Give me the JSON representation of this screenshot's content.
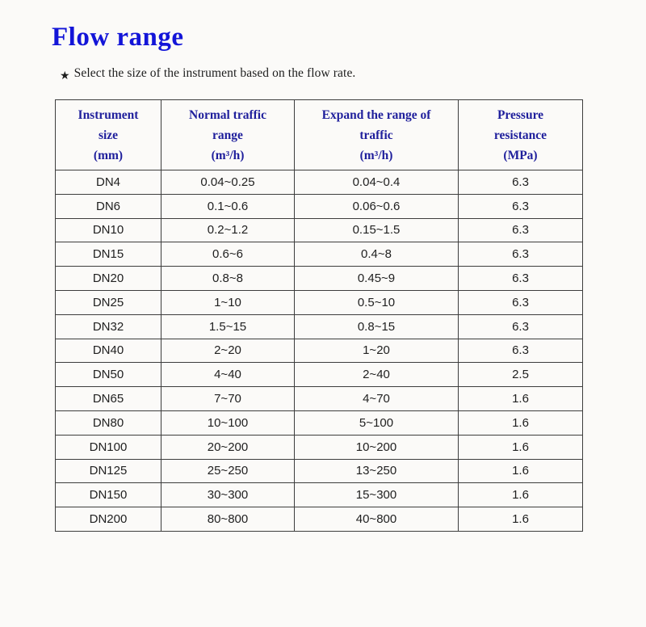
{
  "page": {
    "title": "Flow range",
    "note_bullet": "★",
    "note": "Select the size of the instrument based on the flow rate."
  },
  "colors": {
    "title": "#1315d8",
    "header_text": "#1f1f9c",
    "cell_text": "#212121",
    "border": "#3d3d3d",
    "background": "#fbfaf8"
  },
  "table": {
    "headers": [
      {
        "lines": [
          "Instrument",
          "size",
          "(mm)"
        ]
      },
      {
        "lines": [
          "Normal traffic",
          "range",
          "(m³/h)"
        ]
      },
      {
        "lines": [
          "Expand the range of",
          "traffic",
          "(m³/h)"
        ]
      },
      {
        "lines": [
          "Pressure",
          "resistance",
          "(MPa)"
        ]
      }
    ],
    "rows": [
      {
        "cells": [
          "DN4",
          "0.04~0.25",
          "0.04~0.4",
          "6.3"
        ]
      },
      {
        "cells": [
          "DN6",
          "0.1~0.6",
          "0.06~0.6",
          "6.3"
        ]
      },
      {
        "cells": [
          "DN10",
          "0.2~1.2",
          "0.15~1.5",
          "6.3"
        ]
      },
      {
        "cells": [
          "DN15",
          "0.6~6",
          "0.4~8",
          "6.3"
        ]
      },
      {
        "cells": [
          "DN20",
          "0.8~8",
          "0.45~9",
          "6.3"
        ]
      },
      {
        "cells": [
          "DN25",
          "1~10",
          "0.5~10",
          "6.3"
        ]
      },
      {
        "cells": [
          "DN32",
          "1.5~15",
          "0.8~15",
          "6.3"
        ]
      },
      {
        "cells": [
          "DN40",
          "2~20",
          "1~20",
          "6.3"
        ]
      },
      {
        "cells": [
          "DN50",
          "4~40",
          "2~40",
          "2.5"
        ]
      },
      {
        "cells": [
          "DN65",
          "7~70",
          "4~70",
          "1.6"
        ]
      },
      {
        "cells": [
          "DN80",
          "10~100",
          "5~100",
          "1.6"
        ]
      },
      {
        "cells": [
          "DN100",
          "20~200",
          "10~200",
          "1.6"
        ]
      },
      {
        "cells": [
          "DN125",
          "25~250",
          "13~250",
          "1.6"
        ]
      },
      {
        "cells": [
          "DN150",
          "30~300",
          "15~300",
          "1.6"
        ]
      },
      {
        "cells": [
          "DN200",
          "80~800",
          "40~800",
          "1.6"
        ]
      }
    ]
  }
}
